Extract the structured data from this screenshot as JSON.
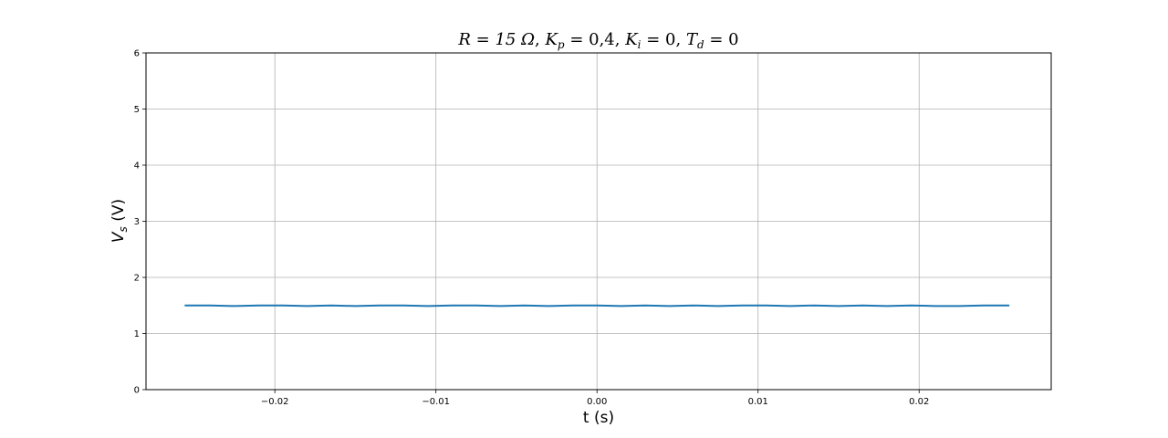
{
  "chart_data": {
    "type": "line",
    "title": "R = 15 Ω,  K_p = 0,4,  K_i = 0,  T_d = 0",
    "title_parts": {
      "r": "R = 15 Ω",
      "kp": "K",
      "kp_sub": "p",
      "kp_val": " = 0,4",
      "ki": "K",
      "ki_sub": "i",
      "ki_val": " = 0",
      "td": "T",
      "td_sub": "d",
      "td_val": " = 0",
      "sep": ", "
    },
    "xlabel": "t (s)",
    "ylabel": "V_s (V)",
    "ylabel_parts": {
      "main": "V",
      "sub": "s",
      "unit": " (V)"
    },
    "xlim": [
      -0.028,
      0.0282
    ],
    "ylim": [
      0,
      6
    ],
    "x_ticks": [
      -0.02,
      -0.01,
      0.0,
      0.01,
      0.02
    ],
    "x_tick_labels": [
      "−0.02",
      "−0.01",
      "0.00",
      "0.01",
      "0.02"
    ],
    "y_ticks": [
      0,
      1,
      2,
      3,
      4,
      5,
      6
    ],
    "y_tick_labels": [
      "0",
      "1",
      "2",
      "3",
      "4",
      "5",
      "6"
    ],
    "grid": true,
    "series": [
      {
        "color": "#1f77b4",
        "x": [
          -0.0256,
          -0.024,
          -0.0225,
          -0.021,
          -0.0195,
          -0.018,
          -0.0165,
          -0.015,
          -0.0135,
          -0.012,
          -0.0105,
          -0.009,
          -0.0075,
          -0.006,
          -0.0045,
          -0.003,
          -0.0015,
          0.0,
          0.0015,
          0.003,
          0.0045,
          0.006,
          0.0075,
          0.009,
          0.0105,
          0.012,
          0.0135,
          0.015,
          0.0165,
          0.018,
          0.0195,
          0.021,
          0.0225,
          0.024,
          0.0256
        ],
        "y": [
          1.5,
          1.5,
          1.49,
          1.5,
          1.5,
          1.49,
          1.5,
          1.49,
          1.5,
          1.5,
          1.49,
          1.5,
          1.5,
          1.49,
          1.5,
          1.49,
          1.5,
          1.5,
          1.49,
          1.5,
          1.49,
          1.5,
          1.49,
          1.5,
          1.5,
          1.49,
          1.5,
          1.49,
          1.5,
          1.49,
          1.5,
          1.49,
          1.49,
          1.5,
          1.5
        ]
      }
    ]
  }
}
